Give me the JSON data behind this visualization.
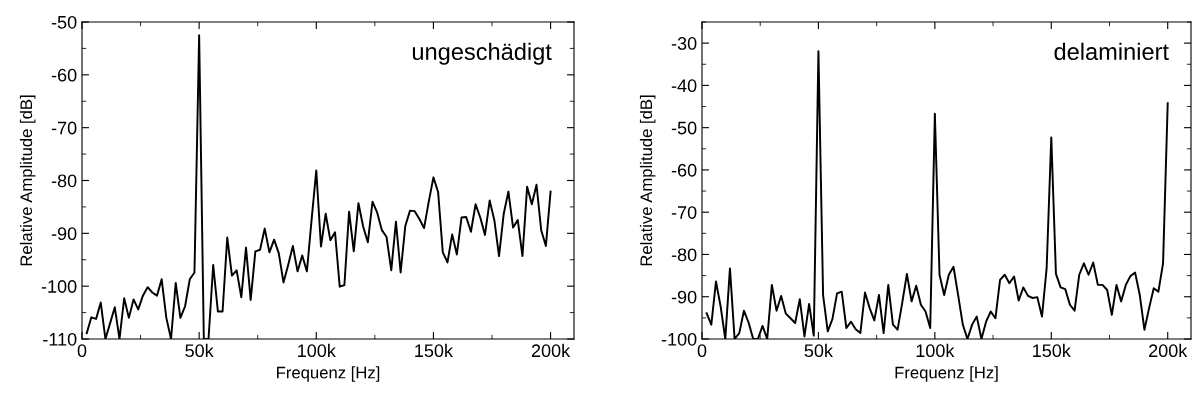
{
  "chart_data": [
    {
      "type": "line",
      "xlabel": "Frequenz [Hz]",
      "ylabel": "Relative Amplitude [dB]",
      "annotations": [
        "ungeschädigt"
      ],
      "xlim": [
        0,
        210000
      ],
      "xticks": [
        {
          "value": 0,
          "label": "0"
        },
        {
          "value": 50000,
          "label": "50k"
        },
        {
          "value": 100000,
          "label": "100k"
        },
        {
          "value": 150000,
          "label": "150k"
        },
        {
          "value": 200000,
          "label": "200k"
        }
      ],
      "ylim": [
        -110,
        -50
      ],
      "yticks": [
        -110,
        -100,
        -90,
        -80,
        -70,
        -60,
        -50
      ],
      "series": [
        {
          "color": "#000000",
          "x": [
            2000,
            4000,
            6000,
            8000,
            10000,
            12000,
            14000,
            16000,
            18000,
            20000,
            22000,
            24000,
            26000,
            28000,
            30000,
            32000,
            34000,
            36000,
            38000,
            40000,
            42000,
            44000,
            46000,
            48000,
            50000,
            52000,
            54000,
            56000,
            58000,
            60000,
            62000,
            64000,
            66000,
            68000,
            70000,
            72000,
            74000,
            76000,
            78000,
            80000,
            82000,
            84000,
            86000,
            88000,
            90000,
            92000,
            94000,
            96000,
            98000,
            100000,
            102000,
            104000,
            106000,
            108000,
            110000,
            112000,
            114000,
            116000,
            118000,
            120000,
            122000,
            124000,
            126000,
            128000,
            130000,
            132000,
            134000,
            136000,
            138000,
            140000,
            142000,
            144000,
            146000,
            148000,
            150000,
            152000,
            154000,
            156000,
            158000,
            160000,
            162000,
            164000,
            166000,
            168000,
            170000,
            172000,
            174000,
            176000,
            178000,
            180000,
            182000,
            184000,
            186000,
            188000,
            190000,
            192000,
            194000,
            196000,
            198000,
            200000
          ],
          "values": [
            -108.9,
            -105.9,
            -106.2,
            -103.1,
            -110,
            -107,
            -104,
            -110,
            -102.3,
            -106,
            -102.5,
            -104.4,
            -101.8,
            -100.2,
            -101.2,
            -101.8,
            -98.7,
            -106,
            -110,
            -99.4,
            -106,
            -103.8,
            -98.7,
            -97.4,
            -52.5,
            -110,
            -110,
            -96,
            -104.8,
            -104.8,
            -90.8,
            -98,
            -97,
            -102.1,
            -92.7,
            -102.6,
            -93.4,
            -93.1,
            -89.1,
            -93.6,
            -91.2,
            -93.8,
            -99.3,
            -96,
            -92.4,
            -97.2,
            -94.2,
            -97.2,
            -87.4,
            -78.1,
            -92.5,
            -86.3,
            -91.3,
            -89.8,
            -100.1,
            -99.8,
            -85.9,
            -93.4,
            -84.3,
            -88.7,
            -91.7,
            -84,
            -86.1,
            -89.4,
            -90.7,
            -97,
            -87.8,
            -97.4,
            -88.6,
            -85.7,
            -85.8,
            -87.3,
            -89,
            -84,
            -79.4,
            -82.2,
            -93.6,
            -95.5,
            -90.2,
            -94,
            -87,
            -86.9,
            -89.7,
            -84.5,
            -87,
            -90.3,
            -83.8,
            -87.5,
            -94.3,
            -86.3,
            -82.1,
            -88.9,
            -87.5,
            -94.3,
            -81.2,
            -84.5,
            -80.8,
            -89.4,
            -92.4,
            -82.1
          ]
        }
      ]
    },
    {
      "type": "line",
      "xlabel": "Frequenz [Hz]",
      "ylabel": "Relative Amplitude [dB]",
      "annotations": [
        "delaminiert"
      ],
      "xlim": [
        0,
        210000
      ],
      "xticks": [
        {
          "value": 0,
          "label": "0"
        },
        {
          "value": 50000,
          "label": "50k"
        },
        {
          "value": 100000,
          "label": "100k"
        },
        {
          "value": 150000,
          "label": "150k"
        },
        {
          "value": 200000,
          "label": "200k"
        }
      ],
      "ylim": [
        -100,
        -25
      ],
      "yticks": [
        -100,
        -90,
        -80,
        -70,
        -60,
        -50,
        -40,
        -30
      ],
      "series": [
        {
          "color": "#000000",
          "x": [
            2000,
            4000,
            6000,
            8000,
            10000,
            12000,
            14000,
            16000,
            18000,
            20000,
            22000,
            24000,
            26000,
            28000,
            30000,
            32000,
            34000,
            36000,
            38000,
            40000,
            42000,
            44000,
            46000,
            48000,
            50000,
            52000,
            54000,
            56000,
            58000,
            60000,
            62000,
            64000,
            66000,
            68000,
            70000,
            72000,
            74000,
            76000,
            78000,
            80000,
            82000,
            84000,
            86000,
            88000,
            90000,
            92000,
            94000,
            96000,
            98000,
            100000,
            102000,
            104000,
            106000,
            108000,
            110000,
            112000,
            114000,
            116000,
            118000,
            120000,
            122000,
            124000,
            126000,
            128000,
            130000,
            132000,
            134000,
            136000,
            138000,
            140000,
            142000,
            144000,
            146000,
            148000,
            150000,
            152000,
            154000,
            156000,
            158000,
            160000,
            162000,
            164000,
            166000,
            168000,
            170000,
            172000,
            174000,
            176000,
            178000,
            180000,
            182000,
            184000,
            186000,
            188000,
            190000,
            192000,
            194000,
            196000,
            198000,
            200000
          ],
          "values": [
            -93.9,
            -96.6,
            -86.4,
            -92.3,
            -100,
            -83.3,
            -100,
            -98.6,
            -93.3,
            -96.1,
            -100,
            -100,
            -96.9,
            -100,
            -87.2,
            -93.3,
            -89.8,
            -94,
            -95.1,
            -96.2,
            -90.6,
            -99.4,
            -91.7,
            -99.2,
            -31.9,
            -89.6,
            -98.2,
            -95.3,
            -89.2,
            -88.8,
            -97.4,
            -95.9,
            -97.7,
            -98.6,
            -89,
            -92.7,
            -95.6,
            -89.6,
            -98.6,
            -87.2,
            -96.6,
            -97.8,
            -91.4,
            -84.6,
            -91.1,
            -87.4,
            -91.9,
            -93.5,
            -97.4,
            -46.7,
            -84.8,
            -89.6,
            -84.8,
            -82.9,
            -89.6,
            -96.6,
            -100,
            -96.6,
            -94.7,
            -100,
            -95.9,
            -93.5,
            -95.1,
            -86,
            -84.8,
            -86.8,
            -85.2,
            -90.9,
            -87.8,
            -89.8,
            -90.3,
            -90.1,
            -94.7,
            -83.3,
            -52.3,
            -84.6,
            -87.8,
            -88.2,
            -91.9,
            -93.3,
            -84.8,
            -82.1,
            -84.8,
            -81.9,
            -87.2,
            -87.2,
            -88.4,
            -94.3,
            -87.2,
            -91.1,
            -87.2,
            -85.1,
            -84.3,
            -89.6,
            -97.8,
            -92.7,
            -88,
            -88.8,
            -82.1,
            -44.2
          ]
        }
      ]
    }
  ]
}
